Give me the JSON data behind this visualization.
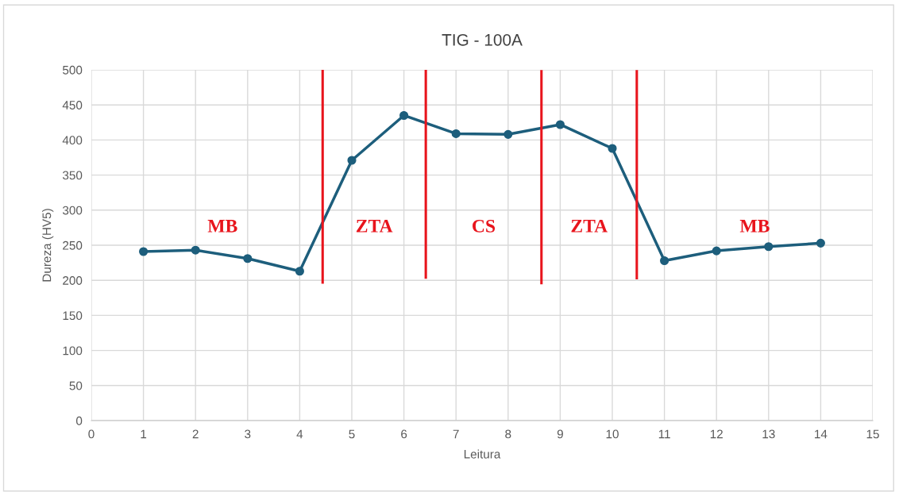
{
  "chart_data": {
    "type": "line",
    "title": "TIG - 100A",
    "xlabel": "Leitura",
    "ylabel": "Dureza (HV5)",
    "x": [
      1,
      2,
      3,
      4,
      5,
      6,
      7,
      8,
      9,
      10,
      11,
      12,
      13,
      14
    ],
    "series": [
      {
        "color": "#1d5e7c",
        "values": [
          241,
          243,
          231,
          213,
          371,
          435,
          409,
          408,
          422,
          388,
          228,
          242,
          248,
          253
        ]
      },
      {
        "type": "line",
        "color": "#e8141c",
        "marker": "none",
        "x": [
          4.44,
          4.44
        ],
        "values": [
          500,
          197
        ]
      },
      {
        "type": "line",
        "color": "#e8141c",
        "marker": "none",
        "x": [
          6.42,
          6.42
        ],
        "values": [
          500,
          204
        ]
      },
      {
        "type": "line",
        "color": "#e8141c",
        "marker": "none",
        "x": [
          8.64,
          8.64
        ],
        "values": [
          498,
          196
        ]
      },
      {
        "type": "line",
        "color": "#e8141c",
        "marker": "none",
        "x": [
          10.47,
          10.47
        ],
        "values": [
          498,
          203
        ]
      }
    ],
    "annotations": [
      "MB",
      "ZTA",
      "CS",
      "ZTA",
      "MB"
    ],
    "xlim": [
      0,
      15
    ],
    "xticks": [
      0,
      1,
      2,
      3,
      4,
      5,
      6,
      7,
      8,
      9,
      10,
      11,
      12,
      13,
      14,
      15
    ],
    "ylim": [
      0,
      500
    ],
    "yticks": [
      0,
      50,
      100,
      150,
      200,
      250,
      300,
      350,
      400,
      450,
      500
    ],
    "grid": true,
    "marker": "circle",
    "line_style": "solid"
  }
}
